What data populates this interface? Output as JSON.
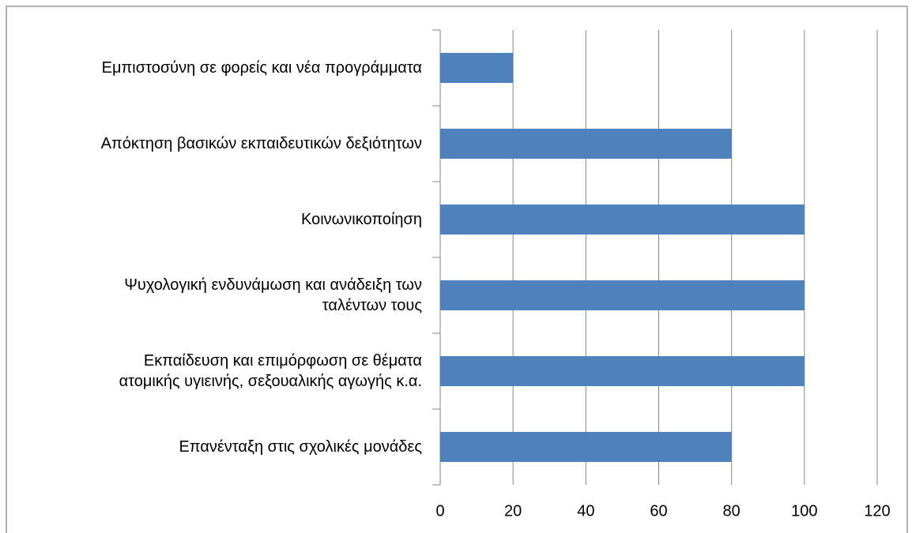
{
  "chart_data": {
    "type": "bar",
    "orientation": "horizontal",
    "categories": [
      "Εμπιστοσύνη σε φορείς και νέα προγράμματα",
      "Απόκτηση βασικών εκπαιδευτικών δεξιότητων",
      "Κοινωνικοποίηση",
      "Ψυχολογική ενδυνάμωση και ανάδειξη των\nταλέντων τους",
      "Εκπαίδευση και επιμόρφωση σε θέματα\nατομικής υγιεινής, σεξουαλικής αγωγής κ.α.",
      "Επανένταξη στις σχολικές μονάδες"
    ],
    "values": [
      20,
      80,
      100,
      100,
      100,
      80
    ],
    "color": "#4f81bd",
    "xlim": [
      0,
      120
    ],
    "xticks": [
      0,
      20,
      40,
      60,
      80,
      100,
      120
    ],
    "grid": true
  }
}
